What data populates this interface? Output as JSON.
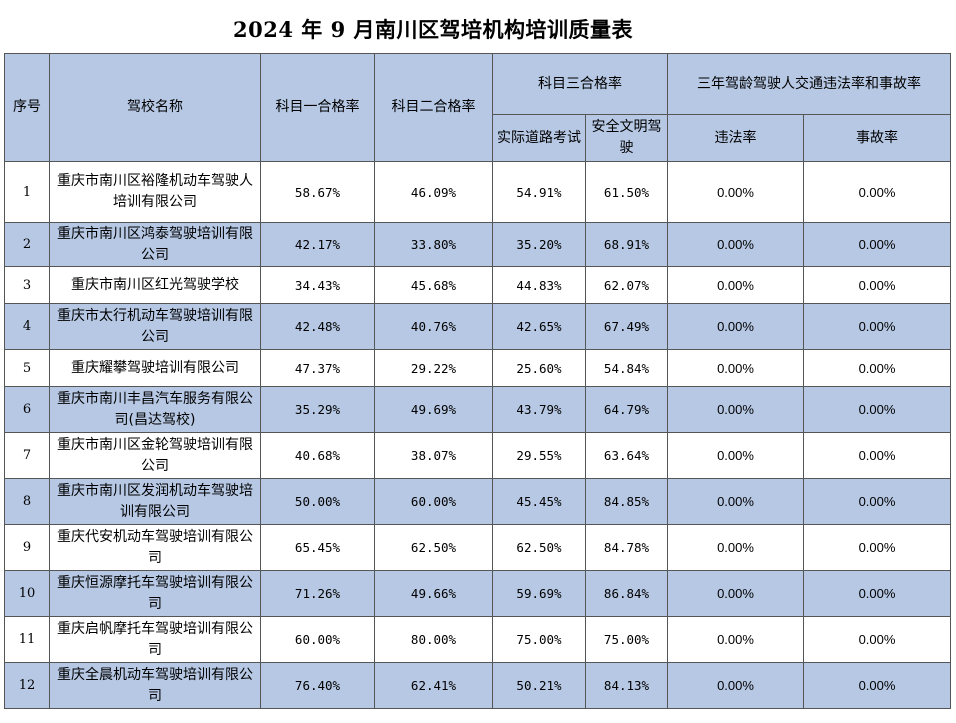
{
  "title": "2024 年 9 月南川区驾培机构培训质量表",
  "headers": {
    "seq": "序号",
    "school": "驾校名称",
    "subject1": "科目一合格率",
    "subject2": "科目二合格率",
    "subject3": "科目三合格率",
    "road_test": "实际道路考试",
    "civil_driving": "安全文明驾驶",
    "three_year": "三年驾龄驾驶人交通违法率和事故率",
    "violation": "违法率",
    "accident": "事故率"
  },
  "rows": [
    {
      "seq": "1",
      "name": "重庆市南川区裕隆机动车驾驶人培训有限公司",
      "s1": "58.67%",
      "s2": "46.09%",
      "road": "54.91%",
      "civil": "61.50%",
      "violation": "0.00%",
      "accident": "0.00%"
    },
    {
      "seq": "2",
      "name": "重庆市南川区鸿泰驾驶培训有限公司",
      "s1": "42.17%",
      "s2": "33.80%",
      "road": "35.20%",
      "civil": "68.91%",
      "violation": "0.00%",
      "accident": "0.00%"
    },
    {
      "seq": "3",
      "name": "重庆市南川区红光驾驶学校",
      "s1": "34.43%",
      "s2": "45.68%",
      "road": "44.83%",
      "civil": "62.07%",
      "violation": "0.00%",
      "accident": "0.00%"
    },
    {
      "seq": "4",
      "name": "重庆市太行机动车驾驶培训有限公司",
      "s1": "42.48%",
      "s2": "40.76%",
      "road": "42.65%",
      "civil": "67.49%",
      "violation": "0.00%",
      "accident": "0.00%"
    },
    {
      "seq": "5",
      "name": "重庆耀攀驾驶培训有限公司",
      "s1": "47.37%",
      "s2": "29.22%",
      "road": "25.60%",
      "civil": "54.84%",
      "violation": "0.00%",
      "accident": "0.00%"
    },
    {
      "seq": "6",
      "name": "重庆市南川丰昌汽车服务有限公司(昌达驾校)",
      "s1": "35.29%",
      "s2": "49.69%",
      "road": "43.79%",
      "civil": "64.79%",
      "violation": "0.00%",
      "accident": "0.00%"
    },
    {
      "seq": "7",
      "name": "重庆市南川区金轮驾驶培训有限公司",
      "s1": "40.68%",
      "s2": "38.07%",
      "road": "29.55%",
      "civil": "63.64%",
      "violation": "0.00%",
      "accident": "0.00%"
    },
    {
      "seq": "8",
      "name": "重庆市南川区发润机动车驾驶培训有限公司",
      "s1": "50.00%",
      "s2": "60.00%",
      "road": "45.45%",
      "civil": "84.85%",
      "violation": "0.00%",
      "accident": "0.00%"
    },
    {
      "seq": "9",
      "name": "重庆代安机动车驾驶培训有限公司",
      "s1": "65.45%",
      "s2": "62.50%",
      "road": "62.50%",
      "civil": "84.78%",
      "violation": "0.00%",
      "accident": "0.00%"
    },
    {
      "seq": "10",
      "name": "重庆恒源摩托车驾驶培训有限公司",
      "s1": "71.26%",
      "s2": "49.66%",
      "road": "59.69%",
      "civil": "86.84%",
      "violation": "0.00%",
      "accident": "0.00%"
    },
    {
      "seq": "11",
      "name": "重庆启帆摩托车驾驶培训有限公司",
      "s1": "60.00%",
      "s2": "80.00%",
      "road": "75.00%",
      "civil": "75.00%",
      "violation": "0.00%",
      "accident": "0.00%"
    },
    {
      "seq": "12",
      "name": "重庆全晨机动车驾驶培训有限公司",
      "s1": "76.40%",
      "s2": "62.41%",
      "road": "50.21%",
      "civil": "84.13%",
      "violation": "0.00%",
      "accident": "0.00%"
    }
  ],
  "colors": {
    "header_bg": "#b6c8e4",
    "alt_row_bg": "#b6c8e4",
    "border": "#555555"
  }
}
